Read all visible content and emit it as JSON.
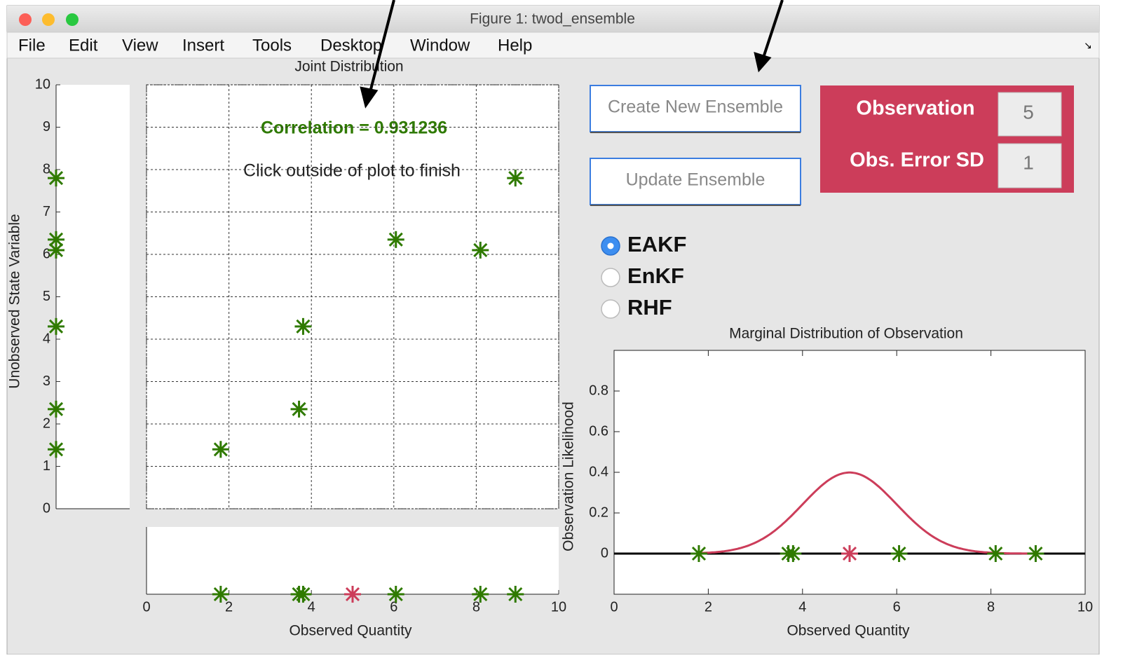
{
  "window": {
    "title": "Figure 1: twod_ensemble"
  },
  "menu": [
    "File",
    "Edit",
    "View",
    "Insert",
    "Tools",
    "Desktop",
    "Window",
    "Help"
  ],
  "joint": {
    "title": "Joint Distribution",
    "correlation_text": "Correlation = 0.931236",
    "instruction": "Click outside of plot to finish",
    "xlabel": "Observed Quantity",
    "ylabel": "Unobserved State Variable",
    "xlim": [
      0,
      10
    ],
    "ylim": [
      0,
      10
    ],
    "xticks": [
      0,
      2,
      4,
      6,
      8,
      10
    ],
    "yticks": [
      0,
      1,
      2,
      3,
      4,
      5,
      6,
      7,
      8,
      9,
      10
    ],
    "x": [
      1.8,
      3.7,
      3.8,
      6.05,
      8.1,
      8.95
    ],
    "y": [
      1.4,
      2.35,
      4.3,
      6.35,
      6.1,
      7.8
    ],
    "color": "#2f7a00",
    "grid": true
  },
  "controls": {
    "buttons": [
      "Create New Ensemble",
      "Update Ensemble"
    ],
    "observation_label": "Observation",
    "observation": 5,
    "error_label": "Obs. Error SD",
    "error_sd": 1,
    "filters": [
      "EAKF",
      "EnKF",
      "RHF"
    ],
    "selected": 0,
    "panel_color": "#cc3d5a"
  },
  "marginal": {
    "title": "Marginal Distribution of Observation",
    "xlabel": "Observed Quantity",
    "ylabel": "Observation Likelihood",
    "xlim": [
      0,
      10
    ],
    "ylim": [
      -0.2,
      1.0
    ],
    "xticks": [
      0,
      2,
      4,
      6,
      8,
      10
    ],
    "yticks": [
      0,
      0.2,
      0.4,
      0.6,
      0.8
    ],
    "curve_color": "#cc3d5a"
  }
}
